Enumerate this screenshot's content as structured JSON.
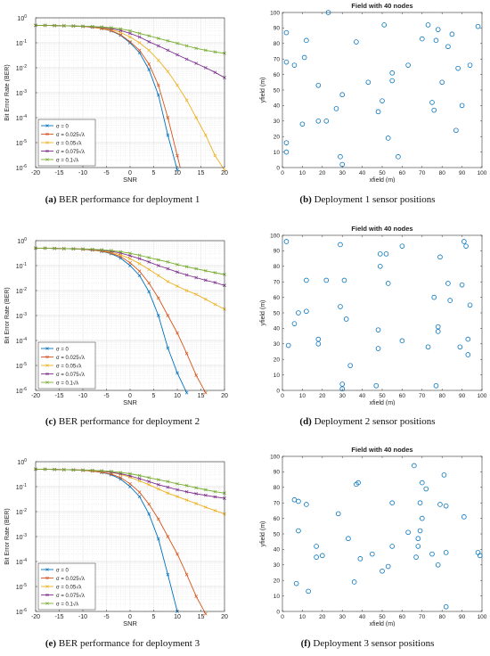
{
  "captions": {
    "a": {
      "tag": "(a)",
      "text": " BER performance for deployment 1"
    },
    "b": {
      "tag": "(b)",
      "text": " Deployment 1 sensor positions"
    },
    "c": {
      "tag": "(c)",
      "text": " BER performance for deployment 2"
    },
    "d": {
      "tag": "(d)",
      "text": " Deployment 2 sensor positions"
    },
    "e": {
      "tag": "(e)",
      "text": " BER performance for deployment 3"
    },
    "f": {
      "tag": "(f)",
      "text": " Deployment 3 sensor positions"
    }
  },
  "chart_data": [
    {
      "id": "ber1",
      "type": "line",
      "title": "",
      "xlabel": "SNR",
      "ylabel": "Bit Error Rate (BER)",
      "yscale": "log",
      "xlim": [
        -20,
        20
      ],
      "ylim": [
        1e-06,
        1
      ],
      "xticks": [
        -20,
        -15,
        -10,
        -5,
        0,
        5,
        10,
        15,
        20
      ],
      "yticks": [
        {
          "v": 1,
          "exp": "0"
        },
        {
          "v": 0.1,
          "exp": "-1"
        },
        {
          "v": 0.01,
          "exp": "-2"
        },
        {
          "v": 0.001,
          "exp": "-3"
        },
        {
          "v": 0.0001,
          "exp": "-4"
        },
        {
          "v": 1e-05,
          "exp": "-5"
        },
        {
          "v": 1e-06,
          "exp": "-6"
        }
      ],
      "grid": true,
      "legend_position": "bottom-left",
      "x": [
        -20,
        -18,
        -16,
        -14,
        -12,
        -10,
        -8,
        -6,
        -4,
        -2,
        0,
        2,
        4,
        6,
        8,
        10,
        12,
        14,
        16,
        18,
        20
      ],
      "series": [
        {
          "name": "σ = 0",
          "color": "#0072bd",
          "values": [
            0.5,
            0.5,
            0.49,
            0.48,
            0.47,
            0.45,
            0.42,
            0.37,
            0.3,
            0.2,
            0.1,
            0.04,
            0.0085,
            0.0008,
            2e-05,
            8e-07,
            null,
            null,
            null,
            null,
            null
          ]
        },
        {
          "name": "σ = 0.025√λ",
          "color": "#d95319",
          "values": [
            0.5,
            0.5,
            0.49,
            0.48,
            0.47,
            0.45,
            0.42,
            0.37,
            0.31,
            0.21,
            0.11,
            0.05,
            0.014,
            0.002,
            0.0001,
            3e-06,
            null,
            null,
            null,
            null,
            null
          ]
        },
        {
          "name": "σ = 0.05√λ",
          "color": "#edb120",
          "values": [
            0.5,
            0.5,
            0.49,
            0.48,
            0.47,
            0.455,
            0.43,
            0.39,
            0.34,
            0.26,
            0.17,
            0.1,
            0.05,
            0.02,
            0.007,
            0.002,
            0.0005,
            0.0001,
            2e-05,
            3e-06,
            8e-07
          ]
        },
        {
          "name": "σ = 0.075√λ",
          "color": "#7e2f8e",
          "values": [
            0.5,
            0.5,
            0.49,
            0.48,
            0.47,
            0.46,
            0.44,
            0.41,
            0.37,
            0.31,
            0.24,
            0.17,
            0.11,
            0.075,
            0.05,
            0.033,
            0.022,
            0.015,
            0.01,
            0.0065,
            0.004
          ]
        },
        {
          "name": "σ = 0.1√λ",
          "color": "#77ac30",
          "values": [
            0.5,
            0.5,
            0.49,
            0.48,
            0.47,
            0.46,
            0.45,
            0.43,
            0.4,
            0.36,
            0.3,
            0.24,
            0.19,
            0.15,
            0.12,
            0.095,
            0.075,
            0.06,
            0.05,
            0.043,
            0.038
          ]
        }
      ]
    },
    {
      "id": "field1",
      "type": "scatter",
      "title": "Field with 40 nodes",
      "xlabel": "xfield (m)",
      "ylabel": "yfield (m)",
      "xlim": [
        0,
        100
      ],
      "ylim": [
        0,
        100
      ],
      "xticks": [
        0,
        10,
        20,
        30,
        40,
        50,
        60,
        70,
        80,
        90,
        100
      ],
      "yticks": [
        0,
        10,
        20,
        30,
        40,
        50,
        60,
        70,
        80,
        90,
        100
      ],
      "grid": false,
      "marker": "circle",
      "color": "#0072bd",
      "points": [
        [
          2,
          87
        ],
        [
          2,
          68
        ],
        [
          2,
          16
        ],
        [
          2,
          10
        ],
        [
          6,
          66
        ],
        [
          10,
          28
        ],
        [
          11,
          71
        ],
        [
          12,
          82
        ],
        [
          18,
          53
        ],
        [
          18,
          30
        ],
        [
          22,
          30
        ],
        [
          23,
          100
        ],
        [
          27,
          38
        ],
        [
          29,
          7
        ],
        [
          30,
          2
        ],
        [
          30,
          47
        ],
        [
          37,
          81
        ],
        [
          43,
          55
        ],
        [
          48,
          36
        ],
        [
          50,
          43
        ],
        [
          51,
          92
        ],
        [
          53,
          19
        ],
        [
          55,
          61
        ],
        [
          55,
          56
        ],
        [
          58,
          7
        ],
        [
          63,
          66
        ],
        [
          70,
          83
        ],
        [
          73,
          92
        ],
        [
          75,
          42
        ],
        [
          76,
          37
        ],
        [
          77,
          82
        ],
        [
          78,
          89
        ],
        [
          80,
          55
        ],
        [
          83,
          78
        ],
        [
          85,
          86
        ],
        [
          87,
          24
        ],
        [
          88,
          64
        ],
        [
          90,
          40
        ],
        [
          94,
          66
        ],
        [
          98,
          91
        ]
      ]
    },
    {
      "id": "ber2",
      "type": "line",
      "title": "",
      "xlabel": "SNR",
      "ylabel": "Bit Error Rate (BER)",
      "yscale": "log",
      "xlim": [
        -20,
        20
      ],
      "ylim": [
        1e-06,
        1
      ],
      "xticks": [
        -20,
        -15,
        -10,
        -5,
        0,
        5,
        10,
        15,
        20
      ],
      "yticks": [
        {
          "v": 1,
          "exp": "0"
        },
        {
          "v": 0.1,
          "exp": "-1"
        },
        {
          "v": 0.01,
          "exp": "-2"
        },
        {
          "v": 0.001,
          "exp": "-3"
        },
        {
          "v": 0.0001,
          "exp": "-4"
        },
        {
          "v": 1e-05,
          "exp": "-5"
        },
        {
          "v": 1e-06,
          "exp": "-6"
        }
      ],
      "grid": true,
      "legend_position": "bottom-left",
      "x": [
        -20,
        -18,
        -16,
        -14,
        -12,
        -10,
        -8,
        -6,
        -4,
        -2,
        0,
        2,
        4,
        6,
        8,
        10,
        12,
        14,
        16,
        18,
        20
      ],
      "series": [
        {
          "name": "σ = 0",
          "color": "#0072bd",
          "values": [
            0.5,
            0.5,
            0.49,
            0.48,
            0.47,
            0.45,
            0.42,
            0.37,
            0.3,
            0.2,
            0.1,
            0.04,
            0.009,
            0.001,
            5e-05,
            5e-06,
            8e-07,
            null,
            null,
            null,
            null
          ]
        },
        {
          "name": "σ = 0.025√λ",
          "color": "#d95319",
          "values": [
            0.5,
            0.5,
            0.49,
            0.48,
            0.47,
            0.45,
            0.42,
            0.38,
            0.32,
            0.23,
            0.13,
            0.06,
            0.02,
            0.005,
            0.001,
            0.0002,
            3e-05,
            4e-06,
            8e-07,
            null,
            null
          ]
        },
        {
          "name": "σ = 0.05√λ",
          "color": "#edb120",
          "values": [
            0.5,
            0.5,
            0.49,
            0.48,
            0.47,
            0.46,
            0.43,
            0.39,
            0.34,
            0.27,
            0.19,
            0.12,
            0.07,
            0.04,
            0.023,
            0.015,
            0.01,
            0.007,
            0.0045,
            0.0028,
            0.0018
          ]
        },
        {
          "name": "σ = 0.075√λ",
          "color": "#7e2f8e",
          "values": [
            0.5,
            0.5,
            0.49,
            0.48,
            0.47,
            0.46,
            0.44,
            0.41,
            0.37,
            0.32,
            0.25,
            0.19,
            0.14,
            0.1,
            0.075,
            0.055,
            0.042,
            0.033,
            0.026,
            0.021,
            0.016
          ]
        },
        {
          "name": "σ = 0.1√λ",
          "color": "#77ac30",
          "values": [
            0.5,
            0.5,
            0.49,
            0.48,
            0.47,
            0.46,
            0.45,
            0.43,
            0.4,
            0.36,
            0.31,
            0.26,
            0.21,
            0.17,
            0.14,
            0.11,
            0.09,
            0.075,
            0.062,
            0.052,
            0.044
          ]
        }
      ]
    },
    {
      "id": "field2",
      "type": "scatter",
      "title": "Field with 40 nodes",
      "xlabel": "xfield (m)",
      "ylabel": "yfield (m)",
      "xlim": [
        0,
        100
      ],
      "ylim": [
        0,
        100
      ],
      "xticks": [
        0,
        10,
        20,
        30,
        40,
        50,
        60,
        70,
        80,
        90,
        100
      ],
      "yticks": [
        0,
        10,
        20,
        30,
        40,
        50,
        60,
        70,
        80,
        90,
        100
      ],
      "grid": false,
      "marker": "circle",
      "color": "#0072bd",
      "points": [
        [
          2,
          96
        ],
        [
          3,
          29
        ],
        [
          6,
          43
        ],
        [
          8,
          50
        ],
        [
          12,
          51
        ],
        [
          12,
          71
        ],
        [
          18,
          33
        ],
        [
          18,
          30
        ],
        [
          22,
          71
        ],
        [
          29,
          94
        ],
        [
          29,
          54
        ],
        [
          30,
          4
        ],
        [
          30,
          1
        ],
        [
          31,
          71
        ],
        [
          32,
          46
        ],
        [
          34,
          16
        ],
        [
          47,
          3
        ],
        [
          48,
          39
        ],
        [
          48,
          27
        ],
        [
          49,
          80
        ],
        [
          49,
          88
        ],
        [
          52,
          88
        ],
        [
          53,
          69
        ],
        [
          60,
          32
        ],
        [
          60,
          93
        ],
        [
          73,
          28
        ],
        [
          76,
          60
        ],
        [
          77,
          3
        ],
        [
          78,
          41
        ],
        [
          78,
          38
        ],
        [
          79,
          86
        ],
        [
          83,
          69
        ],
        [
          84,
          58
        ],
        [
          89,
          28
        ],
        [
          90,
          68
        ],
        [
          91,
          96
        ],
        [
          92,
          93
        ],
        [
          93,
          23
        ],
        [
          93,
          33
        ],
        [
          94,
          55
        ]
      ]
    },
    {
      "id": "ber3",
      "type": "line",
      "title": "",
      "xlabel": "SNR",
      "ylabel": "Bit Error Rate (BER)",
      "yscale": "log",
      "xlim": [
        -20,
        20
      ],
      "ylim": [
        1e-06,
        1
      ],
      "xticks": [
        -20,
        -15,
        -10,
        -5,
        0,
        5,
        10,
        15,
        20
      ],
      "yticks": [
        {
          "v": 1,
          "exp": "0"
        },
        {
          "v": 0.1,
          "exp": "-1"
        },
        {
          "v": 0.01,
          "exp": "-2"
        },
        {
          "v": 0.001,
          "exp": "-3"
        },
        {
          "v": 0.0001,
          "exp": "-4"
        },
        {
          "v": 1e-05,
          "exp": "-5"
        },
        {
          "v": 1e-06,
          "exp": "-6"
        }
      ],
      "grid": true,
      "legend_position": "bottom-left",
      "x": [
        -20,
        -18,
        -16,
        -14,
        -12,
        -10,
        -8,
        -6,
        -4,
        -2,
        0,
        2,
        4,
        6,
        8,
        10,
        12,
        14,
        16,
        18,
        20
      ],
      "series": [
        {
          "name": "σ = 0",
          "color": "#0072bd",
          "values": [
            0.5,
            0.5,
            0.49,
            0.48,
            0.47,
            0.45,
            0.42,
            0.37,
            0.3,
            0.2,
            0.1,
            0.04,
            0.008,
            0.0008,
            3e-05,
            1e-06,
            null,
            null,
            null,
            null,
            null
          ]
        },
        {
          "name": "σ = 0.025√λ",
          "color": "#d95319",
          "values": [
            0.5,
            0.5,
            0.49,
            0.48,
            0.47,
            0.45,
            0.42,
            0.38,
            0.32,
            0.23,
            0.13,
            0.06,
            0.02,
            0.005,
            0.001,
            0.0002,
            3e-05,
            4e-06,
            8e-07,
            null,
            null
          ]
        },
        {
          "name": "σ = 0.05√λ",
          "color": "#edb120",
          "values": [
            0.5,
            0.5,
            0.49,
            0.48,
            0.47,
            0.46,
            0.44,
            0.41,
            0.37,
            0.31,
            0.24,
            0.17,
            0.12,
            0.08,
            0.055,
            0.04,
            0.029,
            0.021,
            0.015,
            0.011,
            0.008
          ]
        },
        {
          "name": "σ = 0.075√λ",
          "color": "#7e2f8e",
          "values": [
            0.5,
            0.5,
            0.49,
            0.48,
            0.47,
            0.46,
            0.45,
            0.42,
            0.38,
            0.33,
            0.27,
            0.21,
            0.16,
            0.12,
            0.095,
            0.075,
            0.062,
            0.052,
            0.045,
            0.039,
            0.034
          ]
        },
        {
          "name": "σ = 0.1√λ",
          "color": "#77ac30",
          "values": [
            0.5,
            0.5,
            0.49,
            0.48,
            0.47,
            0.46,
            0.45,
            0.43,
            0.41,
            0.37,
            0.33,
            0.28,
            0.23,
            0.19,
            0.16,
            0.13,
            0.11,
            0.09,
            0.075,
            0.063,
            0.055
          ]
        }
      ]
    },
    {
      "id": "field3",
      "type": "scatter",
      "title": "Field with 40 nodes",
      "xlabel": "xfield (m)",
      "ylabel": "yfield (m)",
      "xlim": [
        0,
        100
      ],
      "ylim": [
        0,
        100
      ],
      "xticks": [
        0,
        10,
        20,
        30,
        40,
        50,
        60,
        70,
        80,
        90,
        100
      ],
      "yticks": [
        0,
        10,
        20,
        30,
        40,
        50,
        60,
        70,
        80,
        90,
        100
      ],
      "grid": false,
      "marker": "circle",
      "color": "#0072bd",
      "points": [
        [
          6,
          72
        ],
        [
          7,
          18
        ],
        [
          8,
          71
        ],
        [
          8,
          52
        ],
        [
          12,
          69
        ],
        [
          13,
          13
        ],
        [
          17,
          42
        ],
        [
          17,
          35
        ],
        [
          20,
          36
        ],
        [
          28,
          63
        ],
        [
          33,
          47
        ],
        [
          36,
          19
        ],
        [
          37,
          82
        ],
        [
          38,
          83
        ],
        [
          39,
          34
        ],
        [
          45,
          37
        ],
        [
          50,
          26
        ],
        [
          53,
          29
        ],
        [
          55,
          70
        ],
        [
          55,
          42
        ],
        [
          63,
          51
        ],
        [
          66,
          94
        ],
        [
          67,
          35
        ],
        [
          68,
          42
        ],
        [
          68,
          47
        ],
        [
          69,
          52
        ],
        [
          69,
          70
        ],
        [
          70,
          60
        ],
        [
          70,
          83
        ],
        [
          72,
          79
        ],
        [
          75,
          37
        ],
        [
          78,
          30
        ],
        [
          79,
          69
        ],
        [
          81,
          88
        ],
        [
          82,
          3
        ],
        [
          82,
          68
        ],
        [
          82,
          38
        ],
        [
          91,
          61
        ],
        [
          98,
          38
        ],
        [
          99,
          36
        ]
      ]
    }
  ]
}
